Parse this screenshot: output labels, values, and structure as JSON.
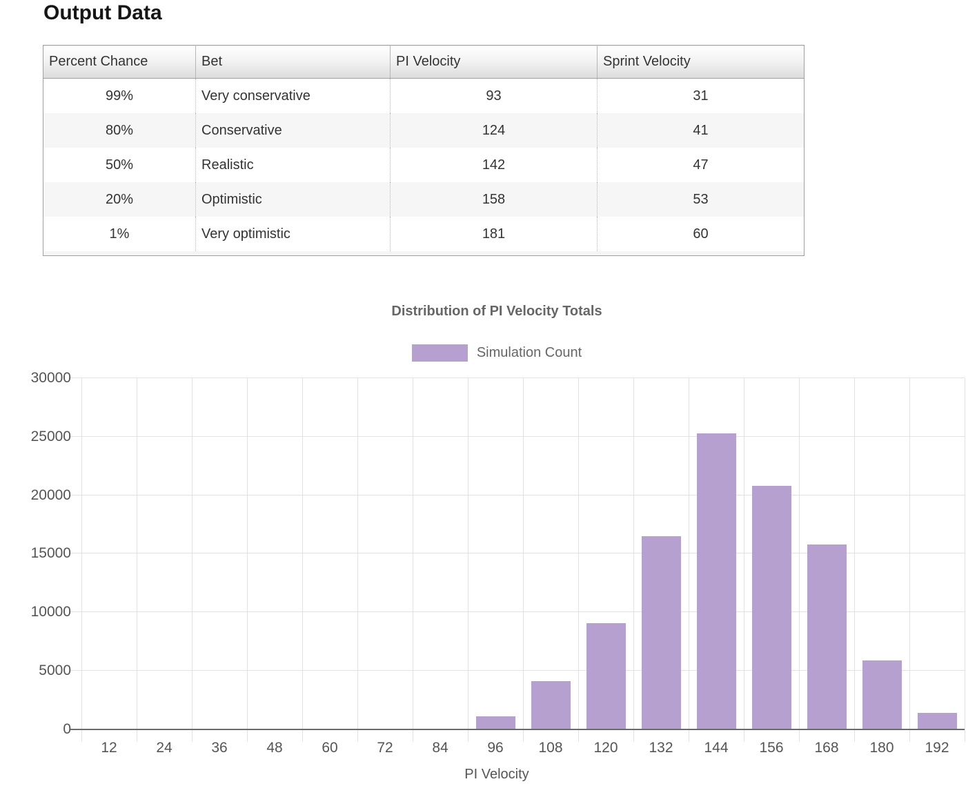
{
  "page": {
    "title": "Output Data"
  },
  "table": {
    "headers": [
      "Percent Chance",
      "Bet",
      "PI Velocity",
      "Sprint Velocity"
    ],
    "rows": [
      [
        "99%",
        "Very conservative",
        "93",
        "31"
      ],
      [
        "80%",
        "Conservative",
        "124",
        "41"
      ],
      [
        "50%",
        "Realistic",
        "142",
        "47"
      ],
      [
        "20%",
        "Optimistic",
        "158",
        "53"
      ],
      [
        "1%",
        "Very optimistic",
        "181",
        "60"
      ]
    ]
  },
  "chart_data": {
    "type": "bar",
    "title": "Distribution of PI Velocity Totals",
    "xlabel": "PI Velocity",
    "ylabel": "",
    "categories": [
      12,
      24,
      36,
      48,
      60,
      72,
      84,
      96,
      108,
      120,
      132,
      144,
      156,
      168,
      180,
      192
    ],
    "series": [
      {
        "name": "Simulation Count",
        "values": [
          0,
          0,
          0,
          0,
          0,
          0,
          0,
          1100,
          4100,
          9050,
          16500,
          25300,
          20800,
          15800,
          5900,
          1400
        ]
      }
    ],
    "ylim": [
      0,
      30000
    ],
    "ytick_step": 5000,
    "grid": true,
    "legend_position": "top",
    "bar_color": "#b6a0d0"
  }
}
